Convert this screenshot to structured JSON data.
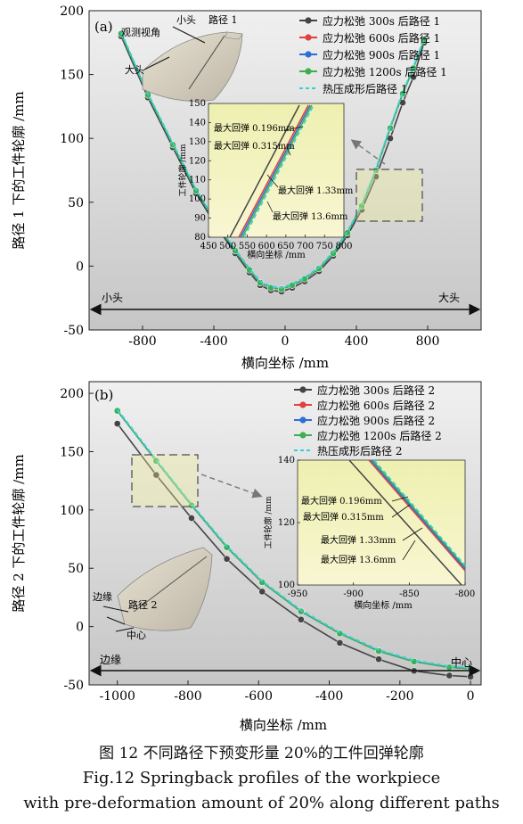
{
  "panels": [
    {
      "id": "a",
      "label": "(a)",
      "ylabel": "路径 1 下的工件轮廓 /mm",
      "xlabel": "横向坐标 /mm",
      "xlim": [
        -1100,
        1100
      ],
      "ylim": [
        -50,
        200
      ],
      "xticks": [
        -800,
        -400,
        0,
        400,
        800
      ],
      "yticks": [
        -50,
        0,
        50,
        100,
        150,
        200
      ],
      "legend": [
        "应力松弛 300s 后路径 1",
        "应力松弛 600s 后路径 1",
        "应力松弛 900s 后路径 1",
        "应力松弛 1200s 后路径 1",
        "热压成形后路径 1"
      ],
      "arrow_left": "小头",
      "arrow_right": "大头",
      "sketch_labels": [
        "观测视角",
        "小头",
        "路径 1",
        "大头"
      ],
      "inset": {
        "ylabel": "工件轮廓 /mm",
        "xlabel": "横向坐标 /mm",
        "xticks": [
          450,
          500,
          550,
          600,
          650,
          700,
          750,
          800
        ],
        "yticks": [
          80,
          90,
          100,
          110,
          120,
          130,
          140,
          150
        ],
        "annotations": [
          "最大回弹 0.196mm",
          "最大回弹 0.315mm",
          "最大回弹 1.33mm",
          "最大回弹 13.6mm"
        ]
      }
    },
    {
      "id": "b",
      "label": "(b)",
      "ylabel": "路径 2 下的工件轮廓 /mm",
      "xlabel": "横向坐标 /mm",
      "xlim": [
        -1080,
        30
      ],
      "ylim": [
        -50,
        210
      ],
      "xticks": [
        -1000,
        -800,
        -600,
        -400,
        -200,
        0
      ],
      "yticks": [
        -50,
        0,
        50,
        100,
        150,
        200
      ],
      "legend": [
        "应力松弛 300s 后路径 2",
        "应力松弛 600s 后路径 2",
        "应力松弛 900s 后路径 2",
        "应力松弛 1200s 后路径 2",
        "热压成形后路径 2"
      ],
      "arrow_left": "边缘",
      "arrow_right": "中心",
      "sketch_labels": [
        "边缘",
        "路径 2",
        "中心"
      ],
      "inset": {
        "ylabel": "工件轮廓 /mm",
        "xlabel": "横向坐标 /mm",
        "xticks": [
          -950,
          -900,
          -850,
          -800
        ],
        "yticks": [
          100,
          120,
          140
        ],
        "annotations": [
          "最大回弹 0.196mm",
          "最大回弹 0.315mm",
          "最大回弹 1.33mm",
          "最大回弹 13.6mm"
        ]
      }
    }
  ],
  "colors": {
    "s300": "#444444",
    "s600": "#e04040",
    "s900": "#2e6fd6",
    "s1200": "#3fae52",
    "hot": "#33d1d6",
    "bg_top": "#ececec",
    "bg_bot": "#c8c8c8",
    "inset_bg": "#f4f0a0"
  },
  "chart_data": [
    {
      "type": "line",
      "xlabel": "横向坐标 /mm",
      "ylabel": "路径 1 下的工件轮廓 /mm",
      "xlim": [
        -1100,
        1100
      ],
      "ylim": [
        -50,
        200
      ],
      "x": [
        -920,
        -770,
        -630,
        -500,
        -380,
        -280,
        -200,
        -140,
        -80,
        -20,
        40,
        110,
        190,
        270,
        350,
        430,
        510,
        590,
        660,
        720,
        780
      ],
      "series": [
        {
          "name": "应力松弛 300s 后路径 1",
          "values": [
            180,
            132,
            93,
            57,
            30,
            10,
            -5,
            -15,
            -19,
            -20,
            -17,
            -12,
            -4,
            8,
            24,
            44,
            70,
            100,
            128,
            148,
            175
          ]
        },
        {
          "name": "应力松弛 600s 后路径 1",
          "values": [
            182,
            134,
            95,
            59,
            32,
            12,
            -3,
            -13,
            -17,
            -18,
            -15,
            -10,
            -2,
            10,
            26,
            47,
            75,
            108,
            135,
            155,
            177
          ]
        },
        {
          "name": "应力松弛 900s 后路径 1",
          "values": [
            182,
            134,
            95,
            59,
            32,
            12,
            -3,
            -13,
            -17,
            -18,
            -15,
            -10,
            -2,
            10,
            26,
            47,
            75,
            108,
            135,
            155,
            177
          ]
        },
        {
          "name": "应力松弛 1200s 后路径 1",
          "values": [
            182,
            134,
            95,
            59,
            32,
            12,
            -3,
            -13,
            -17,
            -18,
            -15,
            -10,
            -2,
            10,
            26,
            47,
            75,
            108,
            135,
            155,
            177
          ]
        },
        {
          "name": "热压成形后路径 1",
          "values": [
            183,
            135,
            96,
            60,
            33,
            13,
            -2,
            -12,
            -16,
            -17,
            -14,
            -9,
            -1,
            11,
            27,
            48,
            76,
            109,
            136,
            156,
            178
          ]
        }
      ]
    },
    {
      "type": "line",
      "xlabel": "横向坐标 /mm",
      "ylabel": "路径 2 下的工件轮廓 /mm",
      "xlim": [
        -1080,
        30
      ],
      "ylim": [
        -50,
        210
      ],
      "x": [
        -1000,
        -890,
        -790,
        -690,
        -590,
        -480,
        -370,
        -260,
        -160,
        -60,
        0
      ],
      "series": [
        {
          "name": "应力松弛 300s 后路径 2",
          "values": [
            174,
            130,
            93,
            58,
            30,
            6,
            -14,
            -28,
            -38,
            -42,
            -43
          ]
        },
        {
          "name": "应力松弛 600s 后路径 2",
          "values": [
            185,
            142,
            104,
            68,
            38,
            13,
            -6,
            -21,
            -30,
            -35,
            -36
          ]
        },
        {
          "name": "应力松弛 900s 后路径 2",
          "values": [
            185,
            142,
            104,
            68,
            38,
            13,
            -6,
            -21,
            -30,
            -35,
            -36
          ]
        },
        {
          "name": "应力松弛 1200s 后路径 2",
          "values": [
            185,
            142,
            104,
            68,
            38,
            13,
            -6,
            -21,
            -30,
            -35,
            -36
          ]
        },
        {
          "name": "热压成形后路径 2",
          "values": [
            186,
            143,
            105,
            69,
            39,
            14,
            -5,
            -20,
            -29,
            -34,
            -35
          ]
        }
      ]
    }
  ],
  "caption": {
    "line1": "图 12  不同路径下预变形量 20%的工件回弹轮廓",
    "line2": "Fig.12  Springback profiles of the workpiece",
    "line3": "with pre-deformation amount of 20% along different paths"
  }
}
